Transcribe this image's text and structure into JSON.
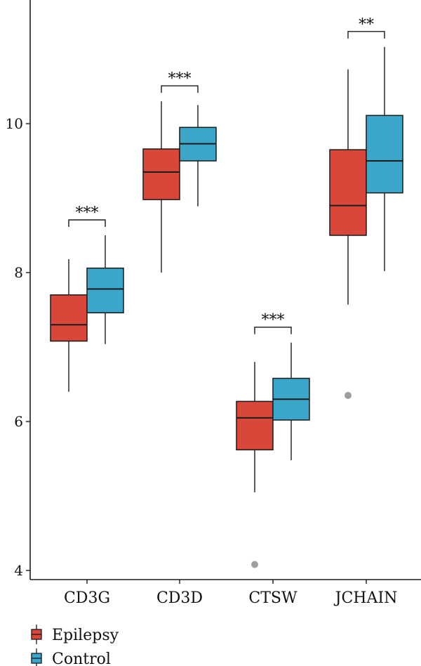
{
  "chart_data": {
    "type": "box",
    "title": "",
    "xlabel": "",
    "ylabel": "",
    "ylim": [
      3.95,
      11.65
    ],
    "yticks": [
      4,
      6,
      8,
      10
    ],
    "categories": [
      "CD3G",
      "CD3D",
      "CTSW",
      "JCHAIN"
    ],
    "series": [
      {
        "name": "Epilepsy",
        "color": "#d9463a",
        "boxes": [
          {
            "whisker_low": 6.4,
            "q1": 7.08,
            "median": 7.3,
            "q3": 7.7,
            "whisker_high": 8.18,
            "outliers": []
          },
          {
            "whisker_low": 8.0,
            "q1": 8.98,
            "median": 9.35,
            "q3": 9.66,
            "whisker_high": 10.3,
            "outliers": []
          },
          {
            "whisker_low": 5.05,
            "q1": 5.62,
            "median": 6.05,
            "q3": 6.27,
            "whisker_high": 6.8,
            "outliers": [
              4.08
            ]
          },
          {
            "whisker_low": 7.57,
            "q1": 8.5,
            "median": 8.9,
            "q3": 9.65,
            "whisker_high": 10.73,
            "outliers": [
              6.35
            ]
          }
        ]
      },
      {
        "name": "Control",
        "color": "#3aa6c9",
        "boxes": [
          {
            "whisker_low": 7.04,
            "q1": 7.46,
            "median": 7.78,
            "q3": 8.06,
            "whisker_high": 8.5,
            "outliers": []
          },
          {
            "whisker_low": 8.89,
            "q1": 9.5,
            "median": 9.73,
            "q3": 9.95,
            "whisker_high": 10.25,
            "outliers": []
          },
          {
            "whisker_low": 5.48,
            "q1": 6.02,
            "median": 6.3,
            "q3": 6.58,
            "whisker_high": 7.06,
            "outliers": []
          },
          {
            "whisker_low": 8.02,
            "q1": 9.07,
            "median": 9.5,
            "q3": 10.11,
            "whisker_high": 11.03,
            "outliers": []
          }
        ]
      }
    ],
    "significance": [
      "***",
      "***",
      "***",
      "**"
    ],
    "legend": {
      "position": "bottom-left",
      "entries": [
        "Epilepsy",
        "Control"
      ]
    },
    "outlier_color": "#9e9e9e",
    "grid": false
  }
}
